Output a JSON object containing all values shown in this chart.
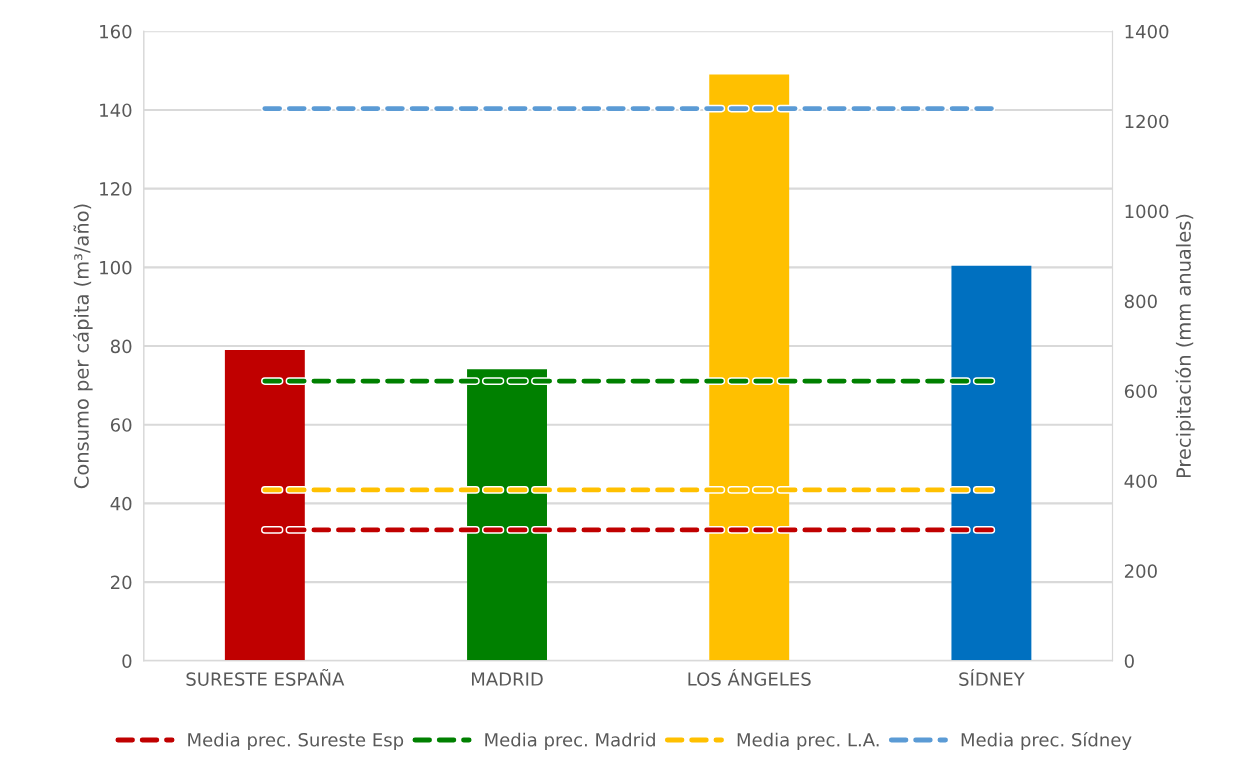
{
  "chart_data": {
    "type": "bar",
    "ylabel": "Consumo per cápita (m³/año)",
    "y2label": "Precipitación (mm anuales)",
    "categories": [
      "SURESTE ESPAÑA",
      "MADRID",
      "LOS ÁNGELES",
      "SÍDNEY"
    ],
    "values": [
      79.0,
      74.1,
      149.0,
      100.4
    ],
    "colors": [
      "#c00000",
      "#008000",
      "#ffc000",
      "#0070c0"
    ],
    "series": [
      {
        "name": "Media prec. Sureste Esp",
        "type": "line",
        "axis": "y2",
        "color": "#c00000",
        "line_style": "dashed",
        "values": [
          291,
          291,
          291,
          291
        ]
      },
      {
        "name": "Media prec. Madrid",
        "type": "line",
        "axis": "y2",
        "color": "#008000",
        "line_style": "dashed",
        "values": [
          622,
          622,
          622,
          622
        ]
      },
      {
        "name": "Media prec. L.A.",
        "type": "line",
        "axis": "y2",
        "color": "#ffc000",
        "line_style": "dashed",
        "values": [
          380,
          380,
          380,
          380
        ]
      },
      {
        "name": "Media prec. Sídney",
        "type": "line",
        "axis": "y2",
        "color": "#5b9bd5",
        "line_style": "dashed",
        "values": [
          1228,
          1228,
          1228,
          1228
        ]
      }
    ],
    "ylim": [
      0,
      160
    ],
    "yticks": [
      0,
      20,
      40,
      60,
      80,
      100,
      120,
      140,
      160
    ],
    "y2lim": [
      0,
      1400
    ],
    "y2ticks": [
      0,
      200,
      400,
      600,
      800,
      1000,
      1200,
      1400
    ],
    "grid": "y",
    "legend": "bottom"
  }
}
